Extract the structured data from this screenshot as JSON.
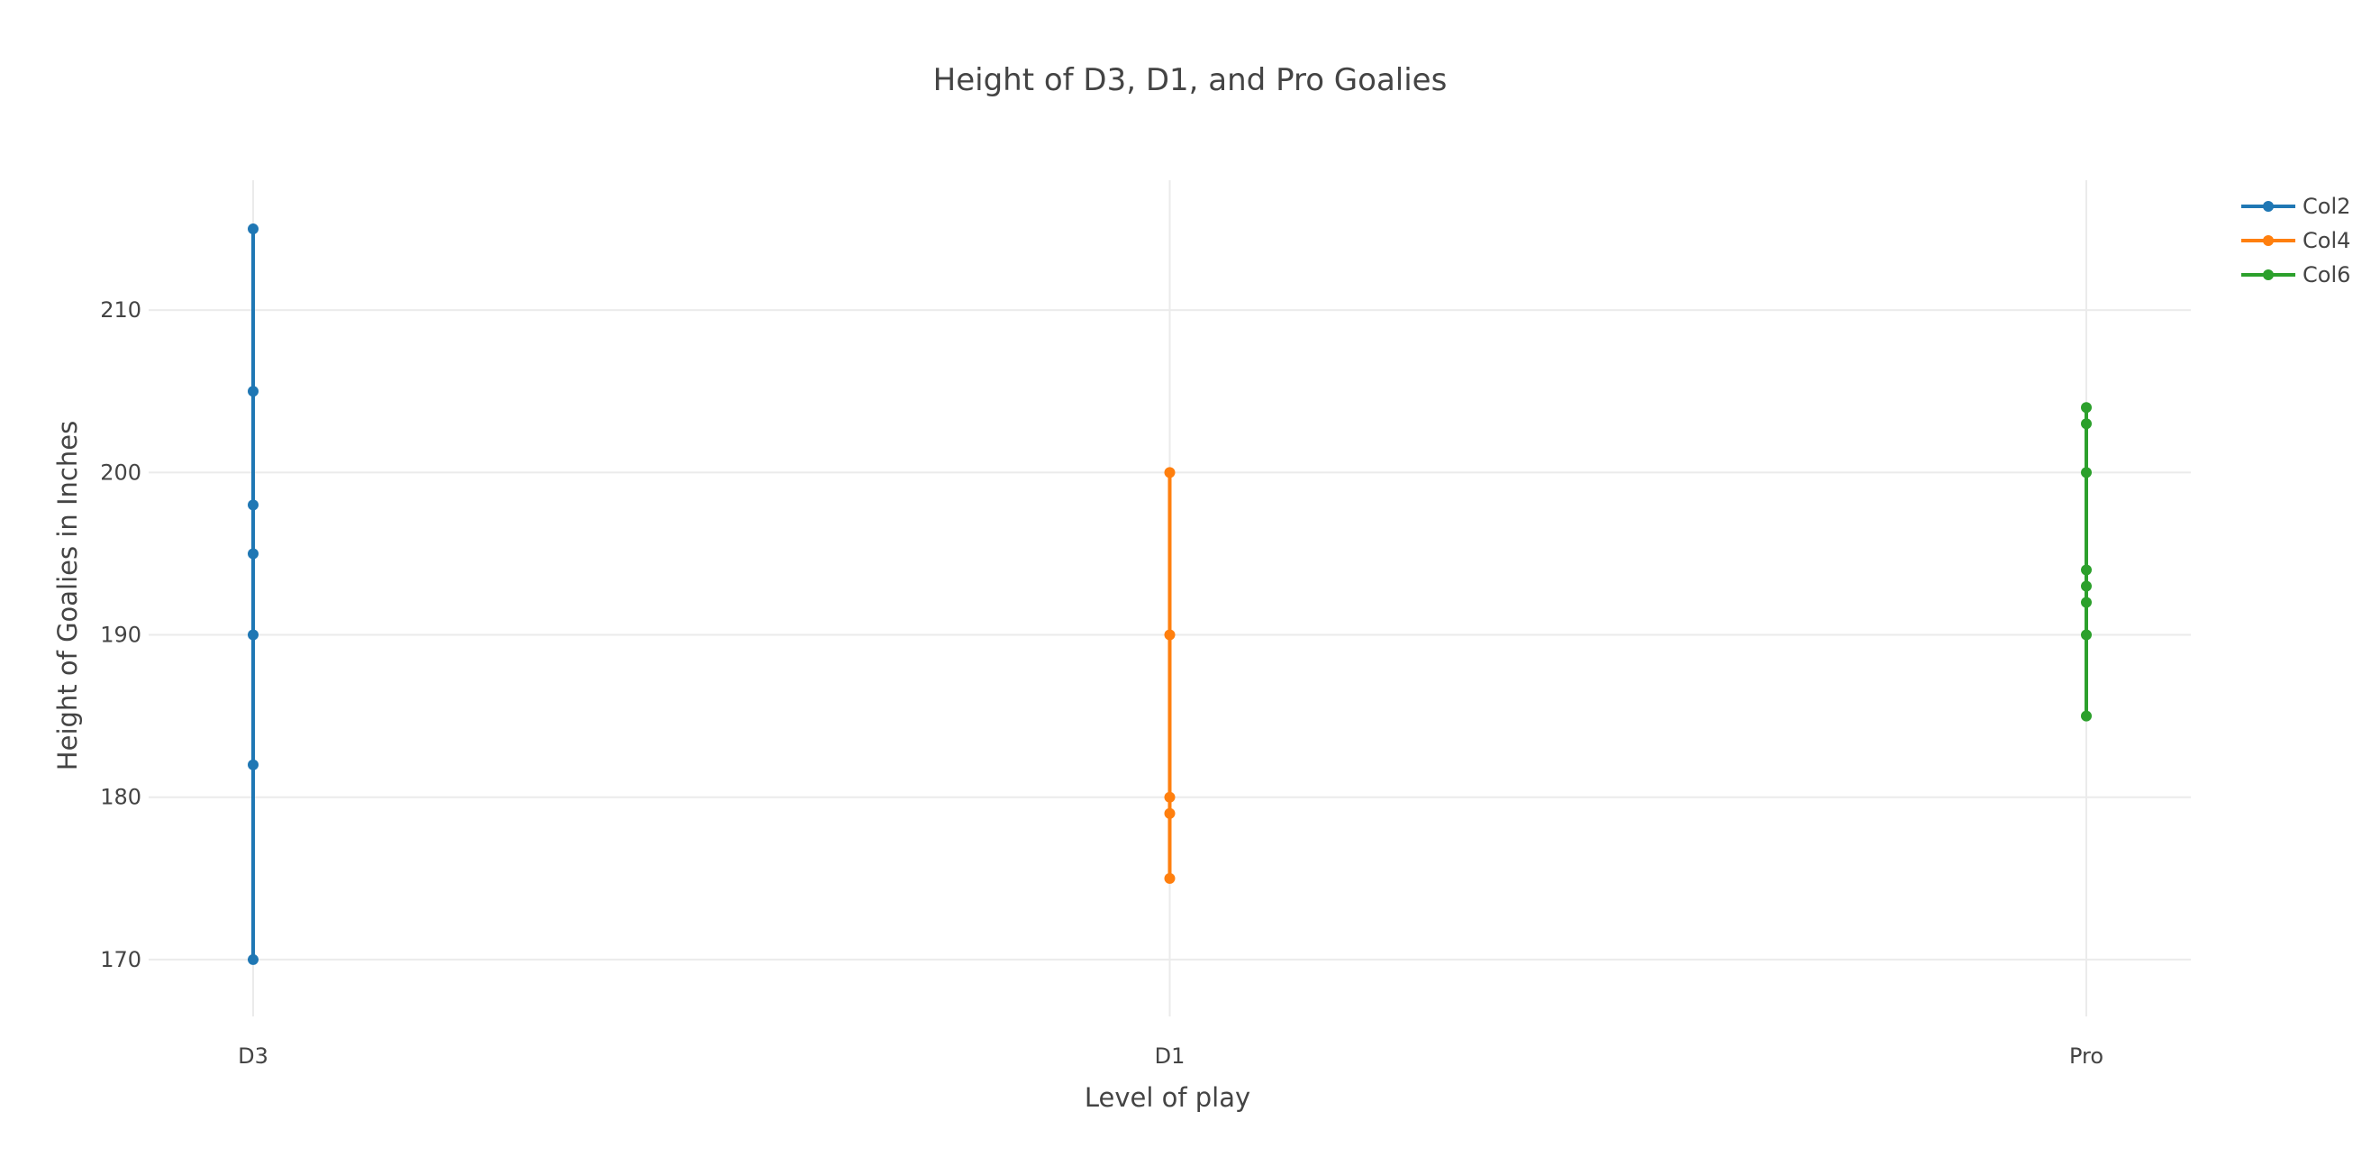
{
  "chart_data": {
    "type": "line",
    "title": "Height of D3, D1, and Pro Goalies",
    "xlabel": "Level of play",
    "ylabel": "Height of Goalies in Inches",
    "categories": [
      "D3",
      "D1",
      "Pro"
    ],
    "ylim": [
      166.5,
      218
    ],
    "yticks": [
      170,
      180,
      190,
      200,
      210
    ],
    "grid": true,
    "legend_position": "top-right",
    "series": [
      {
        "name": "Col2",
        "color": "#1f77b4",
        "x": [
          "D3",
          "D3",
          "D3",
          "D3",
          "D3",
          "D3",
          "D3"
        ],
        "values": [
          215,
          205,
          198,
          195,
          190,
          182,
          170
        ]
      },
      {
        "name": "Col4",
        "color": "#ff7f0e",
        "x": [
          "D1",
          "D1",
          "D1",
          "D1",
          "D1"
        ],
        "values": [
          200,
          190,
          180,
          179,
          175
        ]
      },
      {
        "name": "Col6",
        "color": "#2ca02c",
        "x": [
          "Pro",
          "Pro",
          "Pro",
          "Pro",
          "Pro",
          "Pro",
          "Pro",
          "Pro"
        ],
        "values": [
          204,
          203,
          200,
          194,
          193,
          192,
          190,
          185
        ]
      }
    ]
  }
}
